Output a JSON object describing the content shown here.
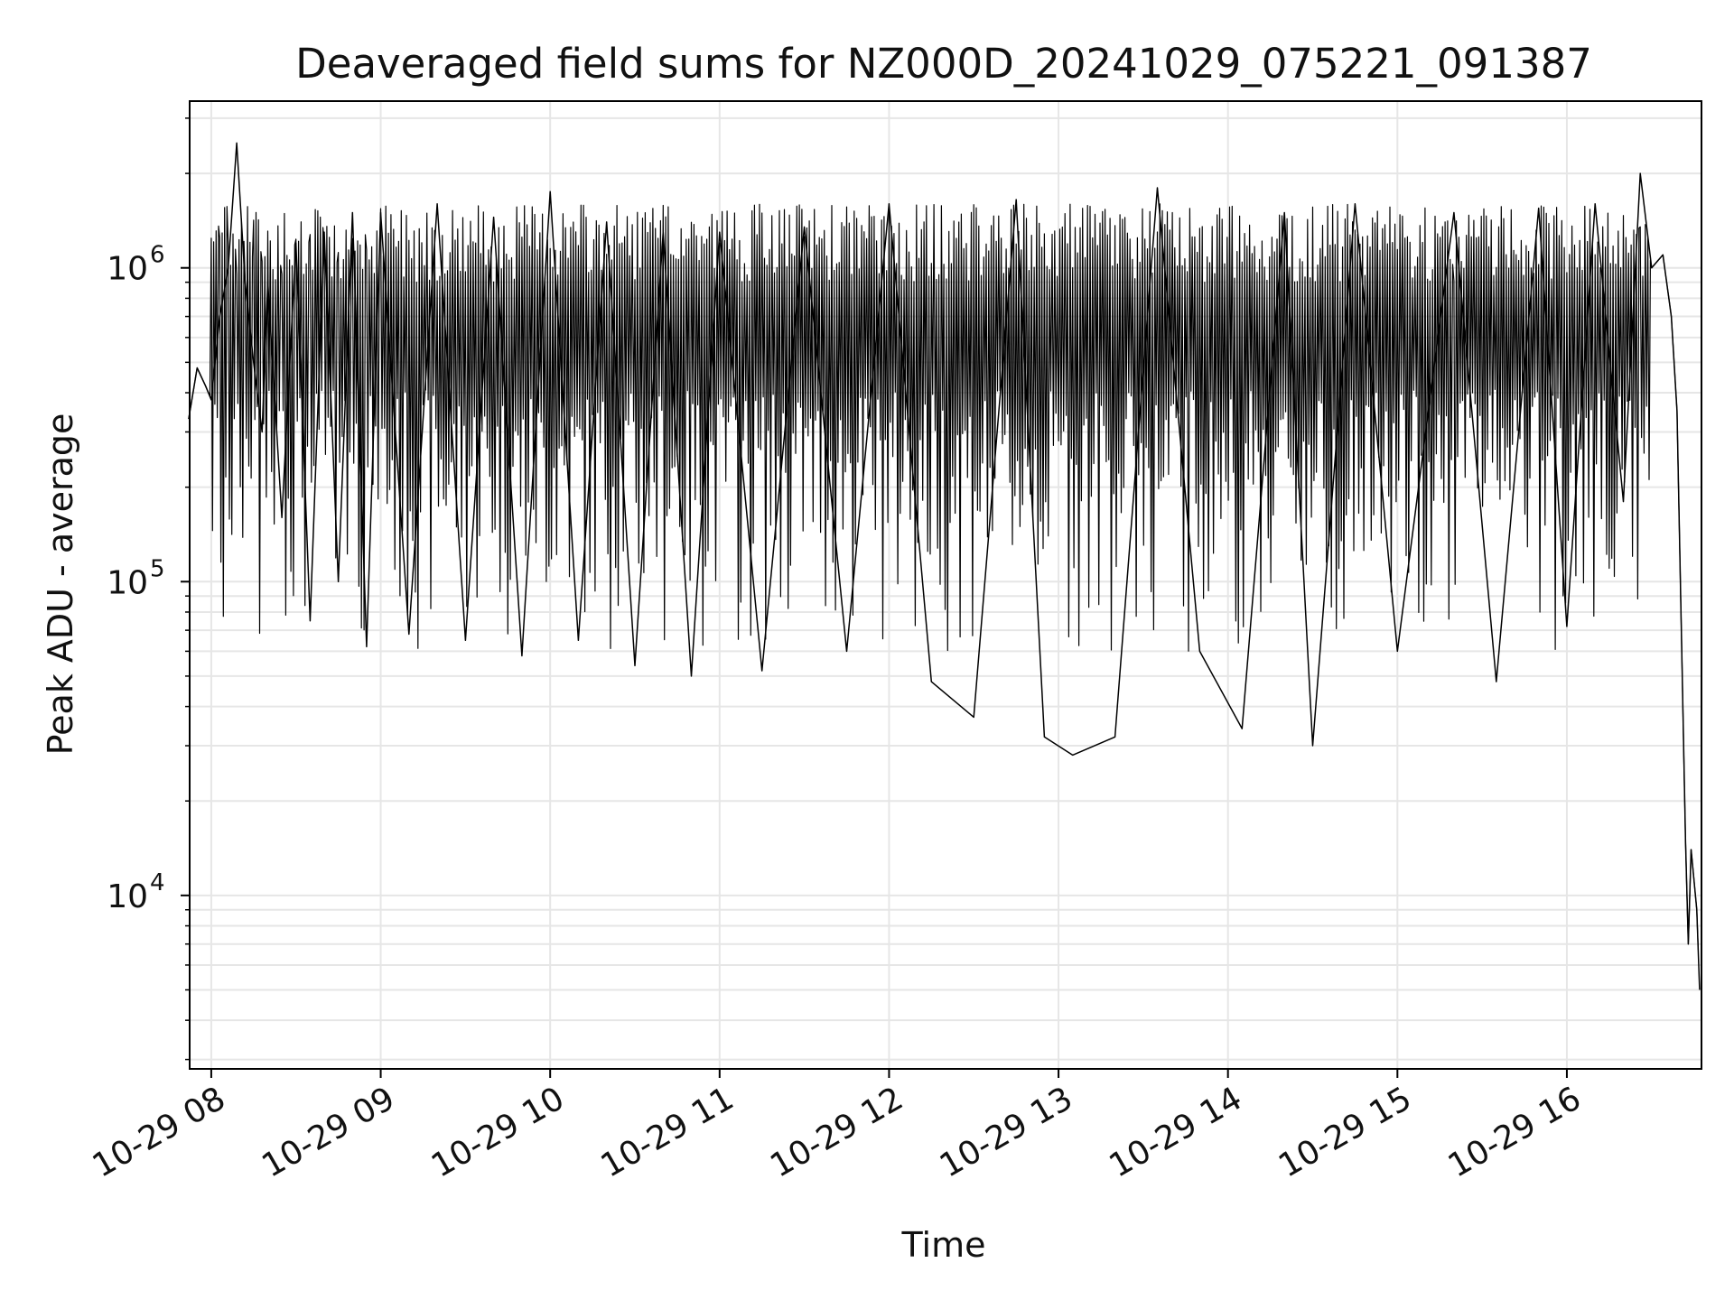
{
  "chart_data": {
    "type": "line",
    "title": "Deaveraged field sums for NZ000D_20241029_075221_091387",
    "xlabel": "Time",
    "ylabel": "Peak ADU - average",
    "yscale": "log",
    "ylim": [
      2800,
      3400000
    ],
    "xlim": [
      "2024-10-29 07:52:21",
      "2024-10-29 16:47:40"
    ],
    "x_ticks": [
      "10-29 08",
      "10-29 09",
      "10-29 10",
      "10-29 11",
      "10-29 12",
      "10-29 13",
      "10-29 14",
      "10-29 15",
      "10-29 16"
    ],
    "y_ticks": [
      {
        "base": "10",
        "exp": "4",
        "value": 10000
      },
      {
        "base": "10",
        "exp": "5",
        "value": 100000
      },
      {
        "base": "10",
        "exp": "6",
        "value": 1000000
      }
    ],
    "grid": true,
    "line_color": "#000000",
    "grid_color": "#e6e6e6",
    "series": [
      {
        "points": [
          [
            "2024-10-29 07:52",
            330000
          ],
          [
            "2024-10-29 07:55",
            480000
          ],
          [
            "2024-10-29 07:58",
            420000
          ],
          [
            "2024-10-29 08:00",
            380000
          ],
          [
            "2024-10-29 08:03",
            700000
          ],
          [
            "2024-10-29 08:06",
            1000000
          ],
          [
            "2024-10-29 08:09",
            2500000
          ],
          [
            "2024-10-29 08:12",
            900000
          ],
          [
            "2024-10-29 08:15",
            500000
          ],
          [
            "2024-10-29 08:18",
            300000
          ],
          [
            "2024-10-29 08:20",
            900000
          ],
          [
            "2024-10-29 08:25",
            160000
          ],
          [
            "2024-10-29 08:30",
            1200000
          ],
          [
            "2024-10-29 08:35",
            75000
          ],
          [
            "2024-10-29 08:40",
            1300000
          ],
          [
            "2024-10-29 08:45",
            100000
          ],
          [
            "2024-10-29 08:50",
            1500000
          ],
          [
            "2024-10-29 08:55",
            62000
          ],
          [
            "2024-10-29 09:00",
            1500000
          ],
          [
            "2024-10-29 09:10",
            68000
          ],
          [
            "2024-10-29 09:20",
            1600000
          ],
          [
            "2024-10-29 09:30",
            65000
          ],
          [
            "2024-10-29 09:40",
            1450000
          ],
          [
            "2024-10-29 09:50",
            58000
          ],
          [
            "2024-10-29 10:00",
            1750000
          ],
          [
            "2024-10-29 10:10",
            65000
          ],
          [
            "2024-10-29 10:20",
            1400000
          ],
          [
            "2024-10-29 10:30",
            54000
          ],
          [
            "2024-10-29 10:40",
            1300000
          ],
          [
            "2024-10-29 10:50",
            50000
          ],
          [
            "2024-10-29 11:00",
            1300000
          ],
          [
            "2024-10-29 11:15",
            52000
          ],
          [
            "2024-10-29 11:30",
            1350000
          ],
          [
            "2024-10-29 11:45",
            60000
          ],
          [
            "2024-10-29 12:00",
            1600000
          ],
          [
            "2024-10-29 12:15",
            48000
          ],
          [
            "2024-10-29 12:30",
            37000
          ],
          [
            "2024-10-29 12:45",
            1650000
          ],
          [
            "2024-10-29 12:55",
            32000
          ],
          [
            "2024-10-29 13:05",
            28000
          ],
          [
            "2024-10-29 13:20",
            32000
          ],
          [
            "2024-10-29 13:35",
            1800000
          ],
          [
            "2024-10-29 13:50",
            60000
          ],
          [
            "2024-10-29 14:05",
            34000
          ],
          [
            "2024-10-29 14:20",
            1500000
          ],
          [
            "2024-10-29 14:30",
            30000
          ],
          [
            "2024-10-29 14:45",
            1600000
          ],
          [
            "2024-10-29 15:00",
            60000
          ],
          [
            "2024-10-29 15:20",
            1500000
          ],
          [
            "2024-10-29 15:35",
            48000
          ],
          [
            "2024-10-29 15:50",
            1550000
          ],
          [
            "2024-10-29 16:00",
            72000
          ],
          [
            "2024-10-29 16:10",
            1600000
          ],
          [
            "2024-10-29 16:20",
            180000
          ],
          [
            "2024-10-29 16:26",
            2000000
          ],
          [
            "2024-10-29 16:30",
            1000000
          ],
          [
            "2024-10-29 16:34",
            1100000
          ],
          [
            "2024-10-29 16:37",
            700000
          ],
          [
            "2024-10-29 16:39",
            350000
          ],
          [
            "2024-10-29 16:42",
            15000
          ],
          [
            "2024-10-29 16:43",
            7000
          ],
          [
            "2024-10-29 16:44",
            14000
          ],
          [
            "2024-10-29 16:46",
            9000
          ],
          [
            "2024-10-29 16:47",
            5000
          ]
        ]
      }
    ]
  }
}
